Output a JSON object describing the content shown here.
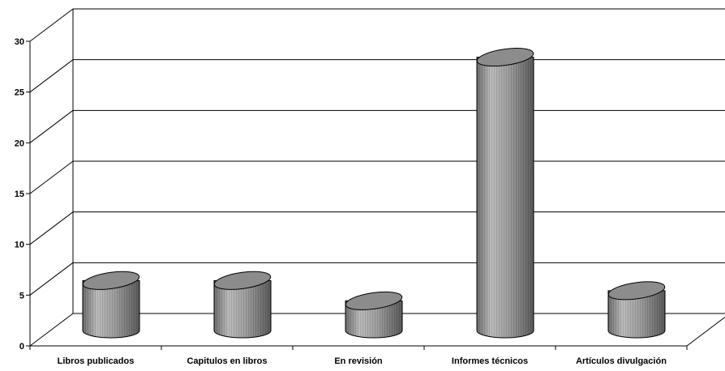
{
  "chart_data": {
    "type": "bar",
    "style": "3d-cylinder",
    "categories": [
      "Libros publicados",
      "Capitulos en libros",
      "En revisión",
      "Informes técnicos",
      "Artículos divulgación"
    ],
    "values": [
      5,
      5,
      3,
      27,
      4
    ],
    "title": "",
    "xlabel": "",
    "ylabel": "",
    "ylim": [
      0,
      30
    ],
    "yticks": [
      0,
      5,
      10,
      15,
      20,
      25,
      30
    ],
    "grid": true,
    "legend": "none",
    "colors": {
      "bar": "#a6a6a6",
      "bar_top": "#8c8c8c",
      "grid": "#000000",
      "background": "#ffffff"
    }
  }
}
